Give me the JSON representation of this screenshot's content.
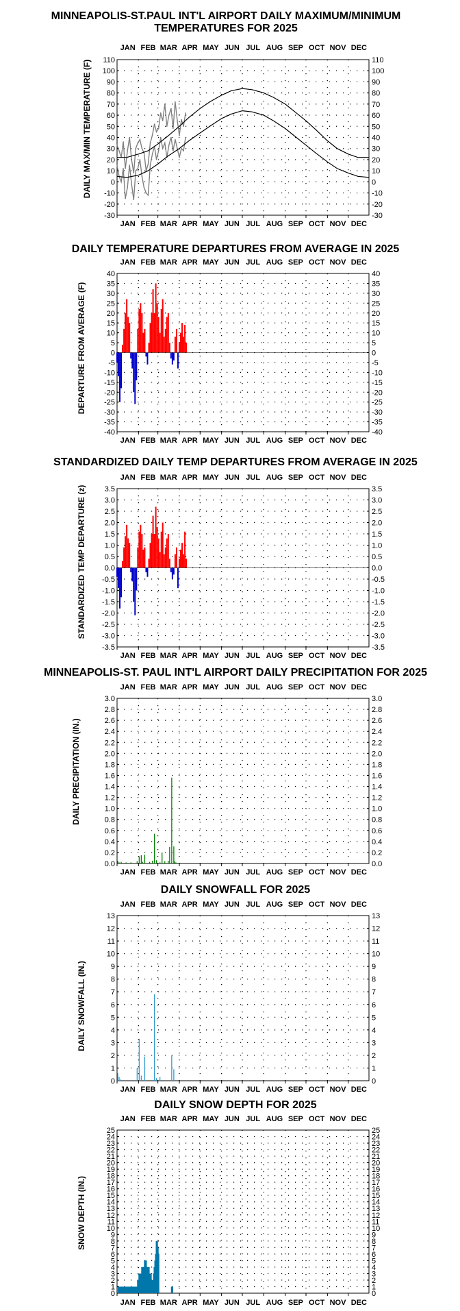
{
  "months": [
    "JAN",
    "FEB",
    "MAR",
    "APR",
    "MAY",
    "JUN",
    "JUL",
    "AUG",
    "SEP",
    "OCT",
    "NOV",
    "DEC"
  ],
  "colors": {
    "up": "#ff0000",
    "down": "#0000cc",
    "precip": "#008000",
    "snow": "#3399cc",
    "depth": "#0077aa",
    "actual": "#808080",
    "normal": "#000000"
  },
  "chart_data": [
    {
      "type": "line",
      "title": "MINNEAPOLIS-ST.PAUL INT'L AIRPORT DAILY MAXIMUM/MINIMUM",
      "subtitle": "TEMPERATURES FOR 2025",
      "ylabel": "DAILY MAX/MIN TEMPERATURE (F)",
      "ylim": [
        -30,
        110
      ],
      "yticks": [
        110,
        100,
        90,
        80,
        70,
        60,
        50,
        40,
        30,
        20,
        10,
        0,
        -10,
        -20,
        -30
      ],
      "grid": true,
      "series": [
        {
          "role": "max-2025",
          "days": [
            1,
            4,
            7,
            10,
            13,
            16,
            19,
            22,
            25,
            28,
            31,
            34,
            37,
            40,
            43,
            46,
            49,
            52,
            55,
            58,
            61,
            64,
            67,
            70,
            73,
            76,
            79,
            82,
            85,
            88,
            91,
            94,
            97,
            100
          ],
          "values": [
            33,
            28,
            22,
            36,
            12,
            28,
            40,
            20,
            8,
            30,
            35,
            38,
            30,
            26,
            10,
            16,
            35,
            42,
            52,
            45,
            48,
            62,
            55,
            70,
            50,
            60,
            66,
            48,
            72,
            55,
            42,
            56,
            50,
            62
          ]
        },
        {
          "role": "min-2025",
          "days": [
            1,
            4,
            7,
            10,
            13,
            16,
            19,
            22,
            25,
            28,
            31,
            34,
            37,
            40,
            43,
            46,
            49,
            52,
            55,
            58,
            61,
            64,
            67,
            70,
            73,
            76,
            79,
            82,
            85,
            88,
            91,
            94,
            97,
            100
          ],
          "values": [
            15,
            5,
            0,
            12,
            -15,
            -5,
            15,
            -2,
            -16,
            10,
            12,
            20,
            5,
            -5,
            -10,
            -12,
            15,
            25,
            32,
            20,
            28,
            40,
            30,
            35,
            22,
            33,
            40,
            28,
            38,
            30,
            22,
            30,
            28,
            40
          ]
        },
        {
          "role": "normal-max",
          "days": [
            1,
            15,
            32,
            46,
            60,
            74,
            91,
            105,
            121,
            135,
            152,
            166,
            182,
            196,
            213,
            227,
            244,
            258,
            274,
            288,
            305,
            319,
            335,
            349,
            365
          ],
          "values": [
            22,
            22,
            25,
            28,
            34,
            41,
            50,
            58,
            66,
            72,
            78,
            82,
            84,
            83,
            80,
            76,
            70,
            63,
            55,
            47,
            37,
            30,
            25,
            22,
            22
          ]
        },
        {
          "role": "normal-min",
          "days": [
            1,
            15,
            32,
            46,
            60,
            74,
            91,
            105,
            121,
            135,
            152,
            166,
            182,
            196,
            213,
            227,
            244,
            258,
            274,
            288,
            305,
            319,
            335,
            349,
            365
          ],
          "values": [
            5,
            4,
            6,
            10,
            16,
            23,
            30,
            37,
            44,
            50,
            57,
            61,
            64,
            63,
            60,
            55,
            48,
            41,
            33,
            26,
            18,
            12,
            8,
            5,
            4
          ]
        }
      ]
    },
    {
      "type": "bar",
      "title": "DAILY TEMPERATURE DEPARTURES FROM AVERAGE IN 2025",
      "ylabel": "DEPARTURE FROM AVERAGE (F)",
      "ylim": [
        -40,
        40
      ],
      "yticks": [
        40,
        35,
        30,
        25,
        20,
        15,
        10,
        5,
        0,
        -5,
        -10,
        -15,
        -20,
        -25,
        -30,
        -35,
        -40
      ],
      "grid": true,
      "days": [
        1,
        3,
        5,
        7,
        9,
        11,
        13,
        15,
        17,
        19,
        21,
        23,
        25,
        27,
        29,
        31,
        33,
        35,
        37,
        39,
        41,
        43,
        45,
        47,
        49,
        51,
        53,
        55,
        57,
        59,
        61,
        63,
        65,
        67,
        69,
        71,
        73,
        75,
        77,
        79,
        81,
        83,
        85,
        87,
        89,
        91,
        93,
        95,
        97,
        99,
        101
      ],
      "values": [
        -5,
        -12,
        -25,
        -18,
        4,
        12,
        20,
        27,
        18,
        15,
        -3,
        -8,
        -20,
        -26,
        -14,
        12,
        22,
        25,
        20,
        10,
        12,
        -2,
        -6,
        5,
        15,
        20,
        32,
        20,
        35,
        25,
        18,
        10,
        22,
        27,
        8,
        12,
        18,
        20,
        5,
        -3,
        -6,
        -4,
        8,
        12,
        -8,
        5,
        10,
        15,
        8,
        14,
        5
      ]
    },
    {
      "type": "bar",
      "title": "STANDARDIZED DAILY TEMP DEPARTURES FROM AVERAGE IN 2025",
      "ylabel": "STANDARDIZED TEMP DEPARTURE (z)",
      "ylim": [
        -3.5,
        3.5
      ],
      "yticks": [
        "3.5",
        "3.0",
        "2.5",
        "2.0",
        "1.5",
        "1.0",
        "0.5",
        "0.0",
        "-0.5",
        "-1.0",
        "-1.5",
        "-2.0",
        "-2.5",
        "-3.0",
        "-3.5"
      ],
      "grid": true,
      "days": [
        1,
        3,
        5,
        7,
        9,
        11,
        13,
        15,
        17,
        19,
        21,
        23,
        25,
        27,
        29,
        31,
        33,
        35,
        37,
        39,
        41,
        43,
        45,
        47,
        49,
        51,
        53,
        55,
        57,
        59,
        61,
        63,
        65,
        67,
        69,
        71,
        73,
        75,
        77,
        79,
        81,
        83,
        85,
        87,
        89,
        91,
        93,
        95,
        97,
        99,
        101
      ],
      "values": [
        -0.4,
        -0.9,
        -1.8,
        -1.3,
        0.3,
        0.9,
        1.4,
        1.9,
        1.3,
        1.1,
        -0.2,
        -0.6,
        -1.5,
        -2.1,
        -1.0,
        0.9,
        1.6,
        1.9,
        1.5,
        0.8,
        0.9,
        -0.2,
        -0.4,
        0.4,
        1.1,
        1.5,
        2.3,
        1.5,
        2.7,
        1.8,
        1.3,
        0.7,
        1.6,
        2.0,
        0.6,
        0.9,
        1.3,
        1.5,
        0.4,
        -0.2,
        -0.5,
        -0.3,
        0.6,
        0.9,
        -0.9,
        0.4,
        0.8,
        1.1,
        0.6,
        1.6,
        0.4
      ]
    },
    {
      "type": "bar",
      "title": "MINNEAPOLIS-ST. PAUL INT'L AIRPORT DAILY PRECIPITATION FOR 2025",
      "ylabel": "DAILY PRECIPITATION (IN.)",
      "ylim": [
        0,
        3.0
      ],
      "yticks": [
        "3.0",
        "2.8",
        "2.6",
        "2.4",
        "2.2",
        "2.0",
        "1.8",
        "1.6",
        "1.4",
        "1.2",
        "1.0",
        "0.8",
        "0.6",
        "0.4",
        "0.2",
        "0.0"
      ],
      "grid": true,
      "days": [
        2,
        4,
        7,
        10,
        14,
        21,
        30,
        33,
        36,
        38,
        41,
        48,
        52,
        55,
        58,
        63,
        66,
        70,
        75,
        77,
        80,
        83,
        84,
        86
      ],
      "values": [
        0.05,
        0.02,
        0.03,
        0.01,
        0.02,
        0.02,
        0.04,
        0.13,
        0.15,
        0.03,
        0.16,
        0.03,
        0.05,
        0.54,
        0.06,
        0.02,
        0.2,
        0.04,
        0.05,
        0.3,
        1.56,
        0.31,
        0.04,
        0.02
      ]
    },
    {
      "type": "bar",
      "title": "DAILY SNOWFALL FOR 2025",
      "ylabel": "DAILY SNOWFALL (IN.)",
      "ylim": [
        0,
        13
      ],
      "yticks": [
        13,
        12,
        11,
        10,
        9,
        8,
        7,
        6,
        5,
        4,
        3,
        2,
        1,
        0
      ],
      "grid": true,
      "days": [
        2,
        4,
        6,
        30,
        33,
        36,
        41,
        55,
        58,
        63,
        80,
        83
      ],
      "values": [
        0.6,
        0.3,
        0.1,
        1.0,
        3.3,
        0.4,
        1.9,
        6.8,
        0.2,
        0.3,
        2.0,
        0.9
      ]
    },
    {
      "type": "bar",
      "title": "DAILY SNOW DEPTH FOR 2025",
      "ylabel": "SNOW DEPTH (IN.)",
      "ylim": [
        0,
        25
      ],
      "yticks": [
        25,
        24,
        23,
        22,
        21,
        20,
        19,
        18,
        17,
        16,
        15,
        14,
        13,
        12,
        11,
        10,
        9,
        8,
        7,
        6,
        5,
        4,
        3,
        2,
        1,
        0
      ],
      "grid": true,
      "days": [
        3,
        4,
        5,
        6,
        7,
        8,
        9,
        10,
        11,
        12,
        13,
        14,
        15,
        16,
        17,
        18,
        19,
        20,
        21,
        22,
        23,
        24,
        25,
        26,
        27,
        28,
        29,
        30,
        31,
        32,
        33,
        34,
        35,
        36,
        37,
        38,
        39,
        40,
        41,
        42,
        43,
        44,
        45,
        46,
        47,
        48,
        49,
        50,
        51,
        52,
        53,
        54,
        55,
        56,
        57,
        58,
        59,
        60,
        61,
        80,
        81
      ],
      "values": [
        1,
        1,
        1,
        1,
        1,
        1,
        1,
        1,
        1,
        1,
        1,
        1,
        1,
        1,
        1,
        1,
        1,
        1,
        1,
        1,
        1,
        1,
        1,
        1,
        1,
        1,
        1,
        1,
        2,
        2,
        3,
        3,
        3,
        3,
        4,
        4,
        4,
        4,
        5,
        5,
        5,
        4,
        4,
        4,
        4,
        3,
        3,
        3,
        2,
        2,
        2,
        3,
        4,
        5,
        6,
        8,
        8,
        7,
        6,
        1,
        1
      ]
    }
  ]
}
